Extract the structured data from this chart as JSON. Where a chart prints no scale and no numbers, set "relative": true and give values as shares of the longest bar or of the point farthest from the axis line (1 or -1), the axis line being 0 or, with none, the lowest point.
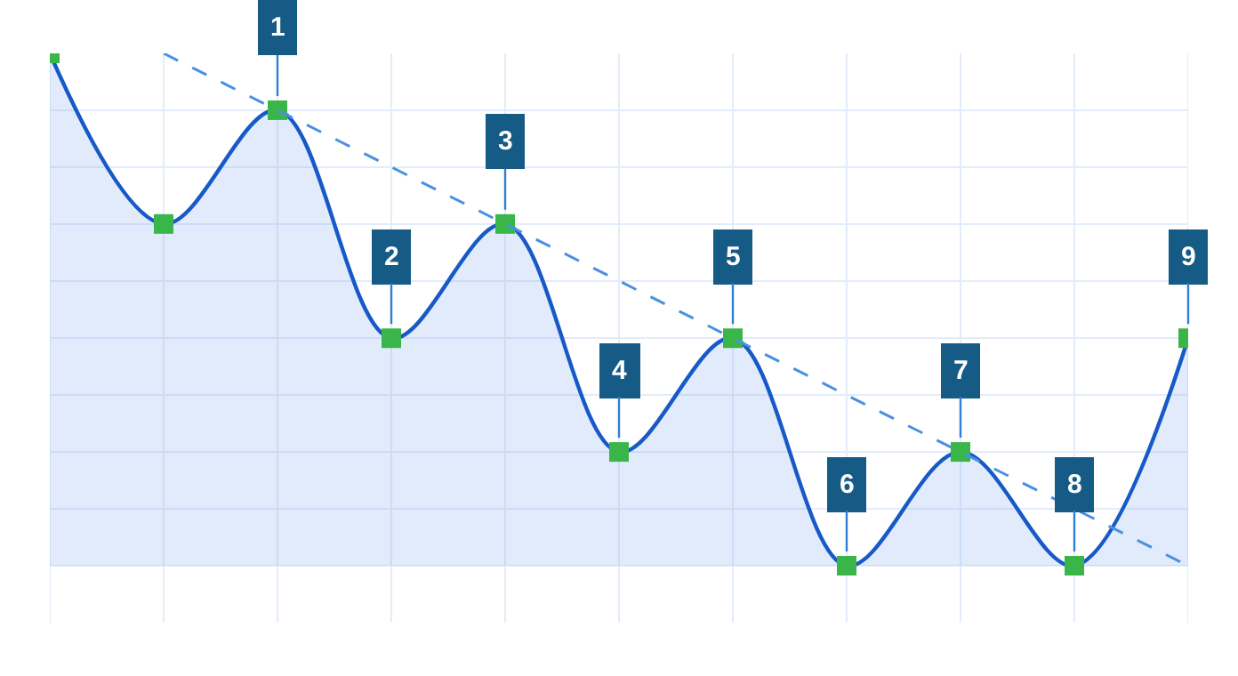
{
  "chart_data": {
    "type": "area",
    "relative": true,
    "categories": [
      null,
      null,
      null,
      null,
      null,
      null,
      null,
      null,
      null,
      null,
      null
    ],
    "grid": true,
    "series": [
      {
        "color": "#1659c7",
        "marker": "square",
        "values": [
          1,
          0.667,
          0.889,
          0.444,
          0.667,
          0.222,
          0.444,
          0,
          0.222,
          0,
          0.444
        ]
      },
      {
        "type": "line",
        "color": "#4a90e2",
        "marker": "none",
        "line_style": "dashed",
        "values": [
          null,
          1,
          0.889,
          0.778,
          0.667,
          0.556,
          0.444,
          0.333,
          0.222,
          0.111,
          0
        ]
      }
    ],
    "annotations": [
      {
        "text": "1",
        "y": 0.889
      },
      {
        "text": "2",
        "y": 0.444
      },
      {
        "text": "3",
        "y": 0.667
      },
      {
        "text": "4",
        "y": 0.222
      },
      {
        "text": "5",
        "y": 0.444
      },
      {
        "text": "6",
        "y": 0
      },
      {
        "text": "7",
        "y": 0.222
      },
      {
        "text": "8",
        "y": 0
      },
      {
        "text": "9",
        "y": 0.444
      }
    ]
  }
}
